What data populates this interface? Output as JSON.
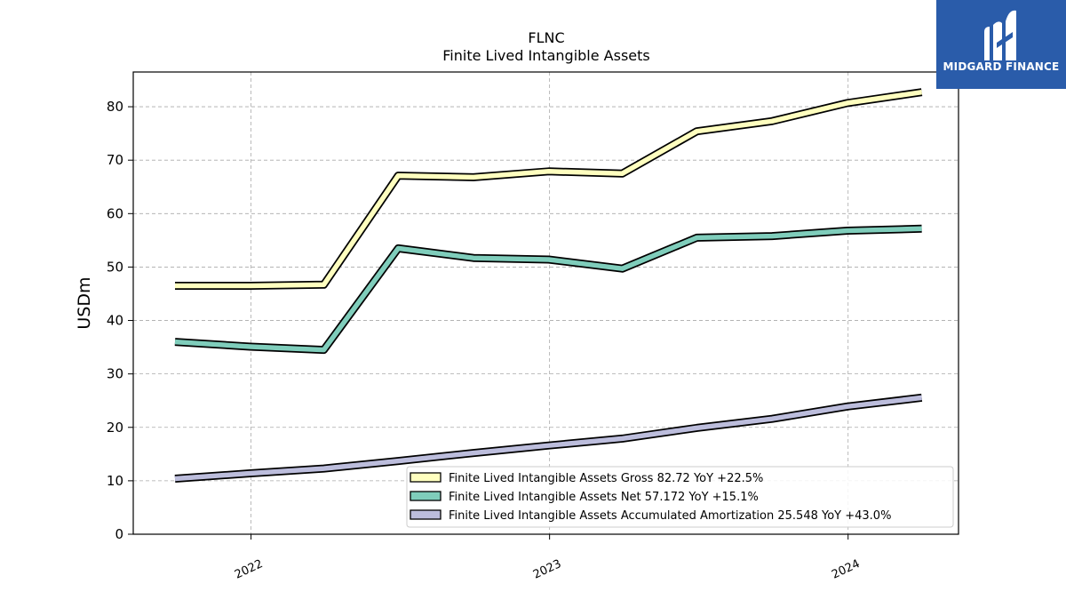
{
  "logo": {
    "name": "MIDGARD FINANCE",
    "background": "#2a5caa"
  },
  "chart_data": {
    "type": "line",
    "title": "FLNC",
    "subtitle": "Finite Lived Intangible Assets",
    "ylabel": "USDm",
    "xlabel": "",
    "ylim": [
      0,
      86.5
    ],
    "yticks": [
      0,
      10,
      20,
      30,
      40,
      50,
      60,
      70,
      80
    ],
    "xlim": [
      "2021-08-10",
      "2024-05-15"
    ],
    "xticks": [
      {
        "date": "2022-01-01",
        "label": "2022"
      },
      {
        "date": "2023-01-01",
        "label": "2023"
      },
      {
        "date": "2024-01-01",
        "label": "2024"
      }
    ],
    "grid": true,
    "legend_position": "lower-right",
    "x": [
      "2021-09-30",
      "2021-12-31",
      "2022-03-31",
      "2022-06-30",
      "2022-09-30",
      "2022-12-31",
      "2023-03-31",
      "2023-06-30",
      "2023-09-30",
      "2023-12-31",
      "2024-03-31"
    ],
    "series": [
      {
        "name": "Finite Lived Intangible Assets Gross",
        "legend_label": "Finite Lived Intangible Assets Gross  82.72 YoY +22.5%",
        "color": "#ffffbf",
        "values": [
          46.5,
          46.5,
          46.7,
          67.1,
          66.8,
          67.9,
          67.5,
          75.4,
          77.3,
          80.7,
          82.72
        ]
      },
      {
        "name": "Finite Lived Intangible Assets Net",
        "legend_label": "Finite Lived Intangible Assets Net  57.172 YoY +15.1%",
        "color": "#7fcdbb",
        "values": [
          36.0,
          35.1,
          34.5,
          53.5,
          51.7,
          51.4,
          49.7,
          55.5,
          55.8,
          56.8,
          57.172
        ]
      },
      {
        "name": "Finite Lived Intangible Assets Accumulated Amortization",
        "legend_label": "Finite Lived Intangible Assets Accumulated Amortization  25.548 YoY +43.0%",
        "color": "#bcbddc",
        "values": [
          10.4,
          11.4,
          12.3,
          13.7,
          15.2,
          16.6,
          17.9,
          19.9,
          21.6,
          23.9,
          25.548
        ]
      }
    ]
  }
}
